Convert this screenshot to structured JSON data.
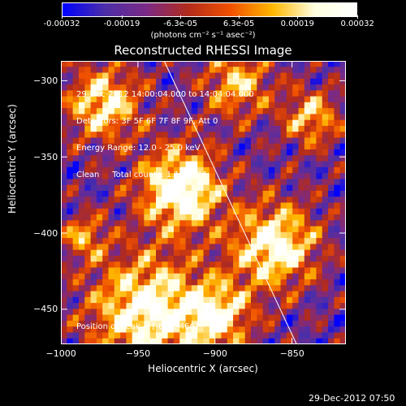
{
  "chart_data": {
    "type": "heatmap",
    "title": "Reconstructed RHESSI Image",
    "xlabel": "Heliocentric X (arcsec)",
    "ylabel": "Heliocentric Y (arcsec)",
    "xlim": [
      -1000,
      -815
    ],
    "ylim": [
      -473,
      -287
    ],
    "xticks": [
      -1000,
      -950,
      -900,
      -850
    ],
    "yticks": [
      -300,
      -350,
      -400,
      -450
    ],
    "colorbar": {
      "ticks": [
        "-0.00032",
        "-0.00019",
        "-6.3e-05",
        "6.3e-05",
        "0.00019",
        "0.00032"
      ],
      "tick_values": [
        -0.00032,
        -0.00019,
        -6.3e-05,
        6.3e-05,
        0.00019,
        0.00032
      ],
      "range": [
        -0.00032,
        0.00032
      ],
      "units": "(photons cm⁻² s⁻¹ asec⁻²)",
      "colors": [
        "#0000ff",
        "#4b2ea8",
        "#7b2a85",
        "#b22b1b",
        "#f05000",
        "#ffb700",
        "#ffffe0",
        "#ffffff"
      ]
    },
    "annotations": [
      "29-Dec-2012 14:00:04.000 to 14:04:04.000",
      "Detectors: 3F 5F 6F 7F 8F 9F, Att 0",
      "Energy Range: 12.0 - 25.0 keV",
      "Clean     Total counts: 1.10E+04"
    ],
    "peak_label": "Position of Peak = [-883,-466]",
    "limb_line": {
      "x": [
        -933,
        -847
      ],
      "y": [
        -287,
        -473
      ]
    }
  },
  "footer": {
    "date": "29-Dec-2012 07:50"
  }
}
